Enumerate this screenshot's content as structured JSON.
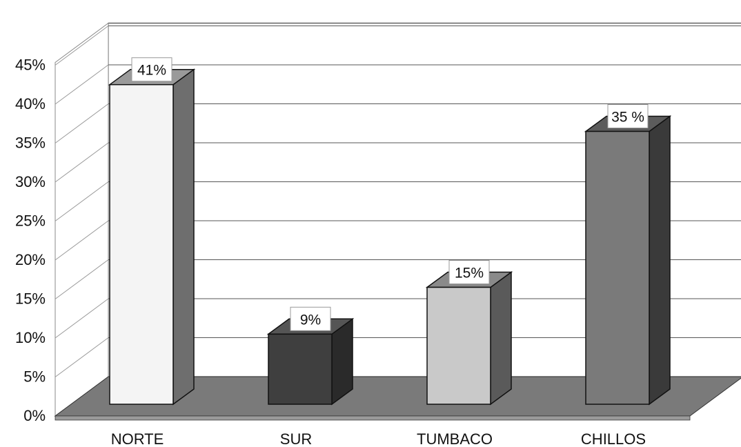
{
  "chart_data": {
    "type": "bar",
    "categories": [
      "NORTE",
      "SUR",
      "TUMBACO",
      "CHILLOS"
    ],
    "values": [
      41,
      9,
      15,
      35
    ],
    "data_labels": [
      "41%",
      "9%",
      "15%",
      "35 %"
    ],
    "y_ticks": [
      "0%",
      "5%",
      "10%",
      "15%",
      "20%",
      "25%",
      "30%",
      "35%",
      "40%",
      "45%"
    ],
    "ylim": [
      0,
      45
    ],
    "grid": true,
    "style": "3d-bars",
    "bar_colors": {
      "NORTE": {
        "front": "#f4f4f4",
        "side": "#6e6e6e",
        "top": "#9a9a9a"
      },
      "SUR": {
        "front": "#3f3f3f",
        "side": "#2a2a2a",
        "top": "#555555"
      },
      "TUMBACO": {
        "front": "#c9c9c9",
        "side": "#5a5a5a",
        "top": "#8a8a8a"
      },
      "CHILLOS": {
        "front": "#7a7a7a",
        "side": "#3a3a3a",
        "top": "#5c5c5c"
      }
    },
    "floor_color": "#7a7a7a",
    "wall_color": "#ffffff"
  }
}
